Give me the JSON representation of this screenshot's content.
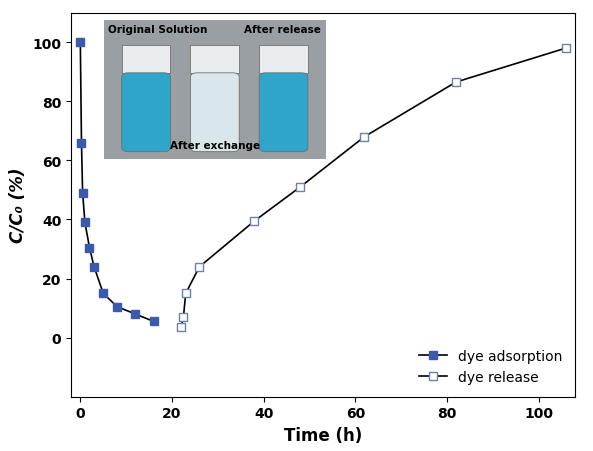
{
  "chart_data": {
    "type": "line",
    "x_label": "Time (h)",
    "y_label": "C/C₀ (%)",
    "annotations": [
      "Original Solution",
      "After exchange",
      "After release"
    ],
    "series": [
      {
        "name": "dye adsorption",
        "color": "#3b5ba8",
        "marker": "square",
        "x": [
          0,
          0.25,
          0.5,
          1,
          2,
          3,
          5,
          8,
          12,
          16
        ],
        "values": [
          100,
          66,
          49,
          39,
          30.5,
          24,
          15,
          10.5,
          8,
          5.5
        ]
      },
      {
        "name": "dye release",
        "color": "#6f7fa8",
        "marker": "open_square",
        "x": [
          22,
          22.5,
          23,
          26,
          38,
          48,
          62,
          82,
          106
        ],
        "values": [
          3.5,
          7,
          15,
          24,
          39.5,
          51,
          68,
          86.5,
          98
        ]
      }
    ],
    "xlim": [
      -2,
      108
    ],
    "ylim": [
      -20,
      110
    ],
    "xticks": [
      0,
      20,
      40,
      60,
      80,
      100
    ],
    "yticks": [
      0,
      20,
      40,
      60,
      80,
      100
    ],
    "legend": "lower right"
  }
}
